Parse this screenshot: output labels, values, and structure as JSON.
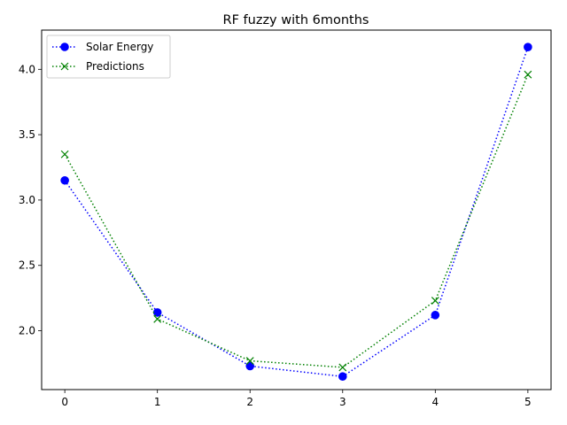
{
  "chart_data": {
    "type": "line",
    "title": "RF fuzzy with 6months",
    "xlabel": "",
    "ylabel": "",
    "x": [
      0,
      1,
      2,
      3,
      4,
      5
    ],
    "xlim": [
      -0.25,
      5.25
    ],
    "ylim": [
      1.55,
      4.3
    ],
    "xticks": [
      "0",
      "1",
      "2",
      "3",
      "4",
      "5"
    ],
    "yticks": [
      "2.0",
      "2.5",
      "3.0",
      "3.5",
      "4.0"
    ],
    "grid": false,
    "legend_position": "upper-left",
    "series": [
      {
        "name": "Solar Energy",
        "values": [
          3.15,
          2.14,
          1.73,
          1.65,
          2.12,
          4.17
        ],
        "color": "#0000ff",
        "marker": "circle",
        "linestyle": "dotted"
      },
      {
        "name": "Predictions",
        "values": [
          3.35,
          2.09,
          1.77,
          1.72,
          2.23,
          3.96
        ],
        "color": "#008000",
        "marker": "x",
        "linestyle": "dotted"
      }
    ]
  }
}
